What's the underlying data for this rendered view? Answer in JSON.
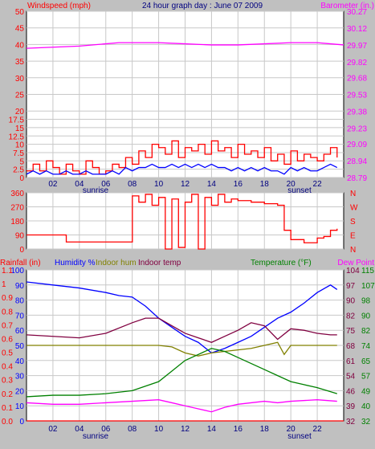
{
  "colors": {
    "background": "#c0c0c0",
    "plot_bg": "#ffffff",
    "grid": "#c8c8c8",
    "red": "#ff0000",
    "blue": "#0000ff",
    "magenta": "#ff00ff",
    "green": "#008000",
    "olive": "#808000",
    "maroon": "#800040",
    "navy": "#000080"
  },
  "top": {
    "left_label": "Windspeed (mph)",
    "title": "24 hour graph day : June 07 2009",
    "right_label": "Barometer (in.)"
  },
  "bottom": {
    "rainfall_label": "Rainfall (in)",
    "humidity_label": "Humidity %",
    "indoor_hum_label": "Indoor hum",
    "indoor_temp_label": "Indoor temp",
    "temperature_label": "Temperature (°F)",
    "dewpoint_label": "Dew Point"
  },
  "x_axis": {
    "ticks": [
      "02",
      "04",
      "06",
      "08",
      "10",
      "12",
      "14",
      "16",
      "18",
      "20",
      "22"
    ],
    "sunrise_label": "sunrise",
    "sunset_label": "sunset"
  },
  "chart_data": [
    {
      "type": "line",
      "title": "24 hour graph day : June 07 2009",
      "x_range": [
        0,
        24
      ],
      "y_left": {
        "label": "Windspeed (mph)",
        "range": [
          0,
          50
        ],
        "ticks": [
          "0",
          "2.5",
          "5",
          "7.5",
          "10",
          "12.5",
          "15",
          "17.5",
          "20",
          "25",
          "30",
          "35",
          "40",
          "45",
          "50"
        ]
      },
      "y_right": {
        "label": "Barometer (in.)",
        "range": [
          28.79,
          30.27
        ],
        "ticks": [
          "28.79",
          "28.94",
          "29.09",
          "29.23",
          "29.38",
          "29.53",
          "29.68",
          "29.82",
          "29.97",
          "30.12",
          "30.27"
        ]
      },
      "series": [
        {
          "name": "Windspeed (mph)",
          "color": "#ff0000",
          "axis": "left",
          "x": [
            0,
            0.5,
            1,
            1.5,
            2,
            2.5,
            3,
            3.5,
            4,
            4.5,
            5,
            5.5,
            6,
            6.5,
            7,
            7.5,
            8,
            8.5,
            9,
            9.5,
            10,
            10.5,
            11,
            11.5,
            12,
            12.5,
            13,
            13.5,
            14,
            14.5,
            15,
            15.5,
            16,
            16.5,
            17,
            17.5,
            18,
            18.5,
            19,
            19.5,
            20,
            20.5,
            21,
            21.5,
            22,
            22.5,
            23,
            23.5
          ],
          "y": [
            2,
            4,
            2,
            5,
            3,
            1,
            4,
            2,
            1,
            5,
            3,
            1,
            2,
            4,
            3,
            6,
            4,
            8,
            6,
            10,
            9,
            7,
            11,
            6,
            9,
            8,
            10,
            7,
            11,
            8,
            9,
            6,
            10,
            7,
            8,
            6,
            9,
            5,
            7,
            4,
            8,
            5,
            7,
            6,
            5,
            7,
            9,
            6
          ]
        },
        {
          "name": "Gust",
          "color": "#0000ff",
          "axis": "left",
          "x": [
            0,
            0.5,
            1,
            1.5,
            2,
            2.5,
            3,
            3.5,
            4,
            4.5,
            5,
            5.5,
            6,
            6.5,
            7,
            7.5,
            8,
            8.5,
            9,
            9.5,
            10,
            10.5,
            11,
            11.5,
            12,
            12.5,
            13,
            13.5,
            14,
            14.5,
            15,
            15.5,
            16,
            16.5,
            17,
            17.5,
            18,
            18.5,
            19,
            19.5,
            20,
            20.5,
            21,
            21.5,
            22,
            22.5,
            23,
            23.5
          ],
          "y": [
            1,
            2,
            1,
            2,
            1,
            1,
            2,
            1,
            1,
            2,
            1,
            1,
            1,
            2,
            1,
            3,
            2,
            3,
            3,
            4,
            3,
            3,
            4,
            3,
            4,
            3,
            4,
            3,
            4,
            3,
            3,
            2,
            3,
            2,
            3,
            2,
            3,
            2,
            2,
            1,
            3,
            2,
            3,
            2,
            2,
            3,
            4,
            3
          ]
        },
        {
          "name": "Barometer (in.)",
          "color": "#ff00ff",
          "axis": "right",
          "x": [
            0,
            2,
            4,
            6,
            7,
            8,
            10,
            12,
            14,
            16,
            18,
            20,
            22,
            23,
            24
          ],
          "y": [
            29.94,
            29.95,
            29.96,
            29.98,
            29.99,
            29.99,
            29.99,
            29.98,
            29.97,
            29.97,
            29.98,
            29.99,
            29.99,
            29.98,
            29.97
          ]
        }
      ]
    },
    {
      "type": "line",
      "x_range": [
        0,
        24
      ],
      "y_left": {
        "range": [
          0,
          360
        ],
        "ticks": [
          "0",
          "90",
          "180",
          "270",
          "360"
        ]
      },
      "y_right": {
        "ticks": [
          "N",
          "W",
          "S",
          "E",
          "N"
        ]
      },
      "series": [
        {
          "name": "Wind direction",
          "color": "#ff0000",
          "x": [
            0,
            2,
            3,
            3.01,
            8,
            8.01,
            8.5,
            9,
            9.5,
            10,
            10.5,
            11,
            11.5,
            12,
            12.5,
            13,
            13.5,
            14,
            14.5,
            15,
            15.5,
            16,
            17,
            18,
            19,
            19.5,
            20,
            21,
            22,
            22.5,
            23,
            23.5
          ],
          "y": [
            90,
            90,
            85,
            45,
            45,
            340,
            300,
            350,
            280,
            330,
            0,
            320,
            10,
            300,
            350,
            0,
            330,
            280,
            350,
            300,
            320,
            310,
            300,
            290,
            280,
            120,
            60,
            40,
            70,
            80,
            120,
            130
          ]
        }
      ]
    },
    {
      "type": "line",
      "x_range": [
        0,
        24
      ],
      "y_left": {
        "label": "Rainfall (in)",
        "range": [
          0,
          1.1
        ],
        "ticks": [
          "0.0",
          "0.1",
          "0.2",
          "0.3",
          "0.4",
          "0.5",
          "0.6",
          "0.7",
          "0.8",
          "0.9",
          "1",
          "1.1"
        ]
      },
      "y_left_humidity": {
        "label": "Humidity %",
        "range": [
          0,
          100
        ],
        "ticks": [
          "0",
          "10",
          "20",
          "30",
          "40",
          "50",
          "60",
          "70",
          "80",
          "90",
          "100"
        ]
      },
      "y_right_temp": {
        "label": "Temperature (°F)",
        "range": [
          32,
          104
        ],
        "ticks": [
          "32",
          "39",
          "46",
          "54",
          "61",
          "68",
          "75",
          "82",
          "90",
          "97",
          "104"
        ]
      },
      "y_right_dew": {
        "label": "Dew Point",
        "range": [
          32,
          115
        ],
        "ticks": [
          "32",
          "40",
          "49",
          "57",
          "65",
          "74",
          "82",
          "90",
          "98",
          "107",
          "115"
        ]
      },
      "series": [
        {
          "name": "Humidity %",
          "color": "#0000ff",
          "axis": "humidity",
          "x": [
            0,
            2,
            4,
            6,
            7,
            8,
            9,
            10,
            11,
            12,
            13,
            14,
            15,
            16,
            17,
            18,
            19,
            20,
            21,
            22,
            23,
            23.5
          ],
          "y": [
            92,
            90,
            88,
            85,
            83,
            82,
            76,
            68,
            62,
            56,
            52,
            45,
            48,
            52,
            56,
            62,
            68,
            72,
            78,
            85,
            90,
            87
          ]
        },
        {
          "name": "Indoor temp",
          "color": "#800040",
          "axis": "humidity",
          "x": [
            0,
            2,
            4,
            6,
            8,
            9,
            10,
            11,
            12,
            13,
            14,
            15,
            16,
            17,
            18,
            19,
            20,
            21,
            22,
            23,
            23.5
          ],
          "y": [
            57,
            56,
            55,
            58,
            65,
            68,
            68,
            63,
            58,
            55,
            52,
            56,
            60,
            65,
            63,
            54,
            61,
            60,
            58,
            57,
            57
          ]
        },
        {
          "name": "Indoor hum",
          "color": "#808000",
          "axis": "humidity",
          "x": [
            0,
            2,
            4,
            6,
            8,
            10,
            11,
            12,
            13,
            14,
            15,
            16,
            17,
            18,
            19,
            19.5,
            20,
            22,
            23.5
          ],
          "y": [
            50,
            50,
            50,
            50,
            50,
            50,
            49,
            45,
            43,
            45,
            46,
            47,
            48,
            50,
            52,
            44,
            50,
            50,
            50
          ]
        },
        {
          "name": "Temperature (°F)",
          "color": "#008000",
          "axis": "humidity",
          "x": [
            0,
            2,
            4,
            6,
            8,
            10,
            11,
            12,
            13,
            14,
            15,
            16,
            17,
            18,
            19,
            20,
            21,
            22,
            23.5
          ],
          "y": [
            16,
            17,
            17,
            18,
            20,
            26,
            33,
            40,
            44,
            48,
            46,
            42,
            38,
            34,
            30,
            26,
            24,
            22,
            18
          ]
        },
        {
          "name": "Dew Point",
          "color": "#ff00ff",
          "axis": "humidity",
          "x": [
            0,
            2,
            4,
            6,
            8,
            10,
            11,
            12,
            13,
            14,
            15,
            16,
            17,
            18,
            19,
            20,
            22,
            23.5
          ],
          "y": [
            12,
            11,
            11,
            12,
            13,
            14,
            12,
            10,
            8,
            6,
            9,
            11,
            12,
            13,
            12,
            13,
            14,
            13
          ]
        },
        {
          "name": "Rainfall (in)",
          "color": "#ff0000",
          "axis": "humidity",
          "x": [
            0,
            24
          ],
          "y": [
            0,
            0
          ]
        }
      ]
    }
  ]
}
